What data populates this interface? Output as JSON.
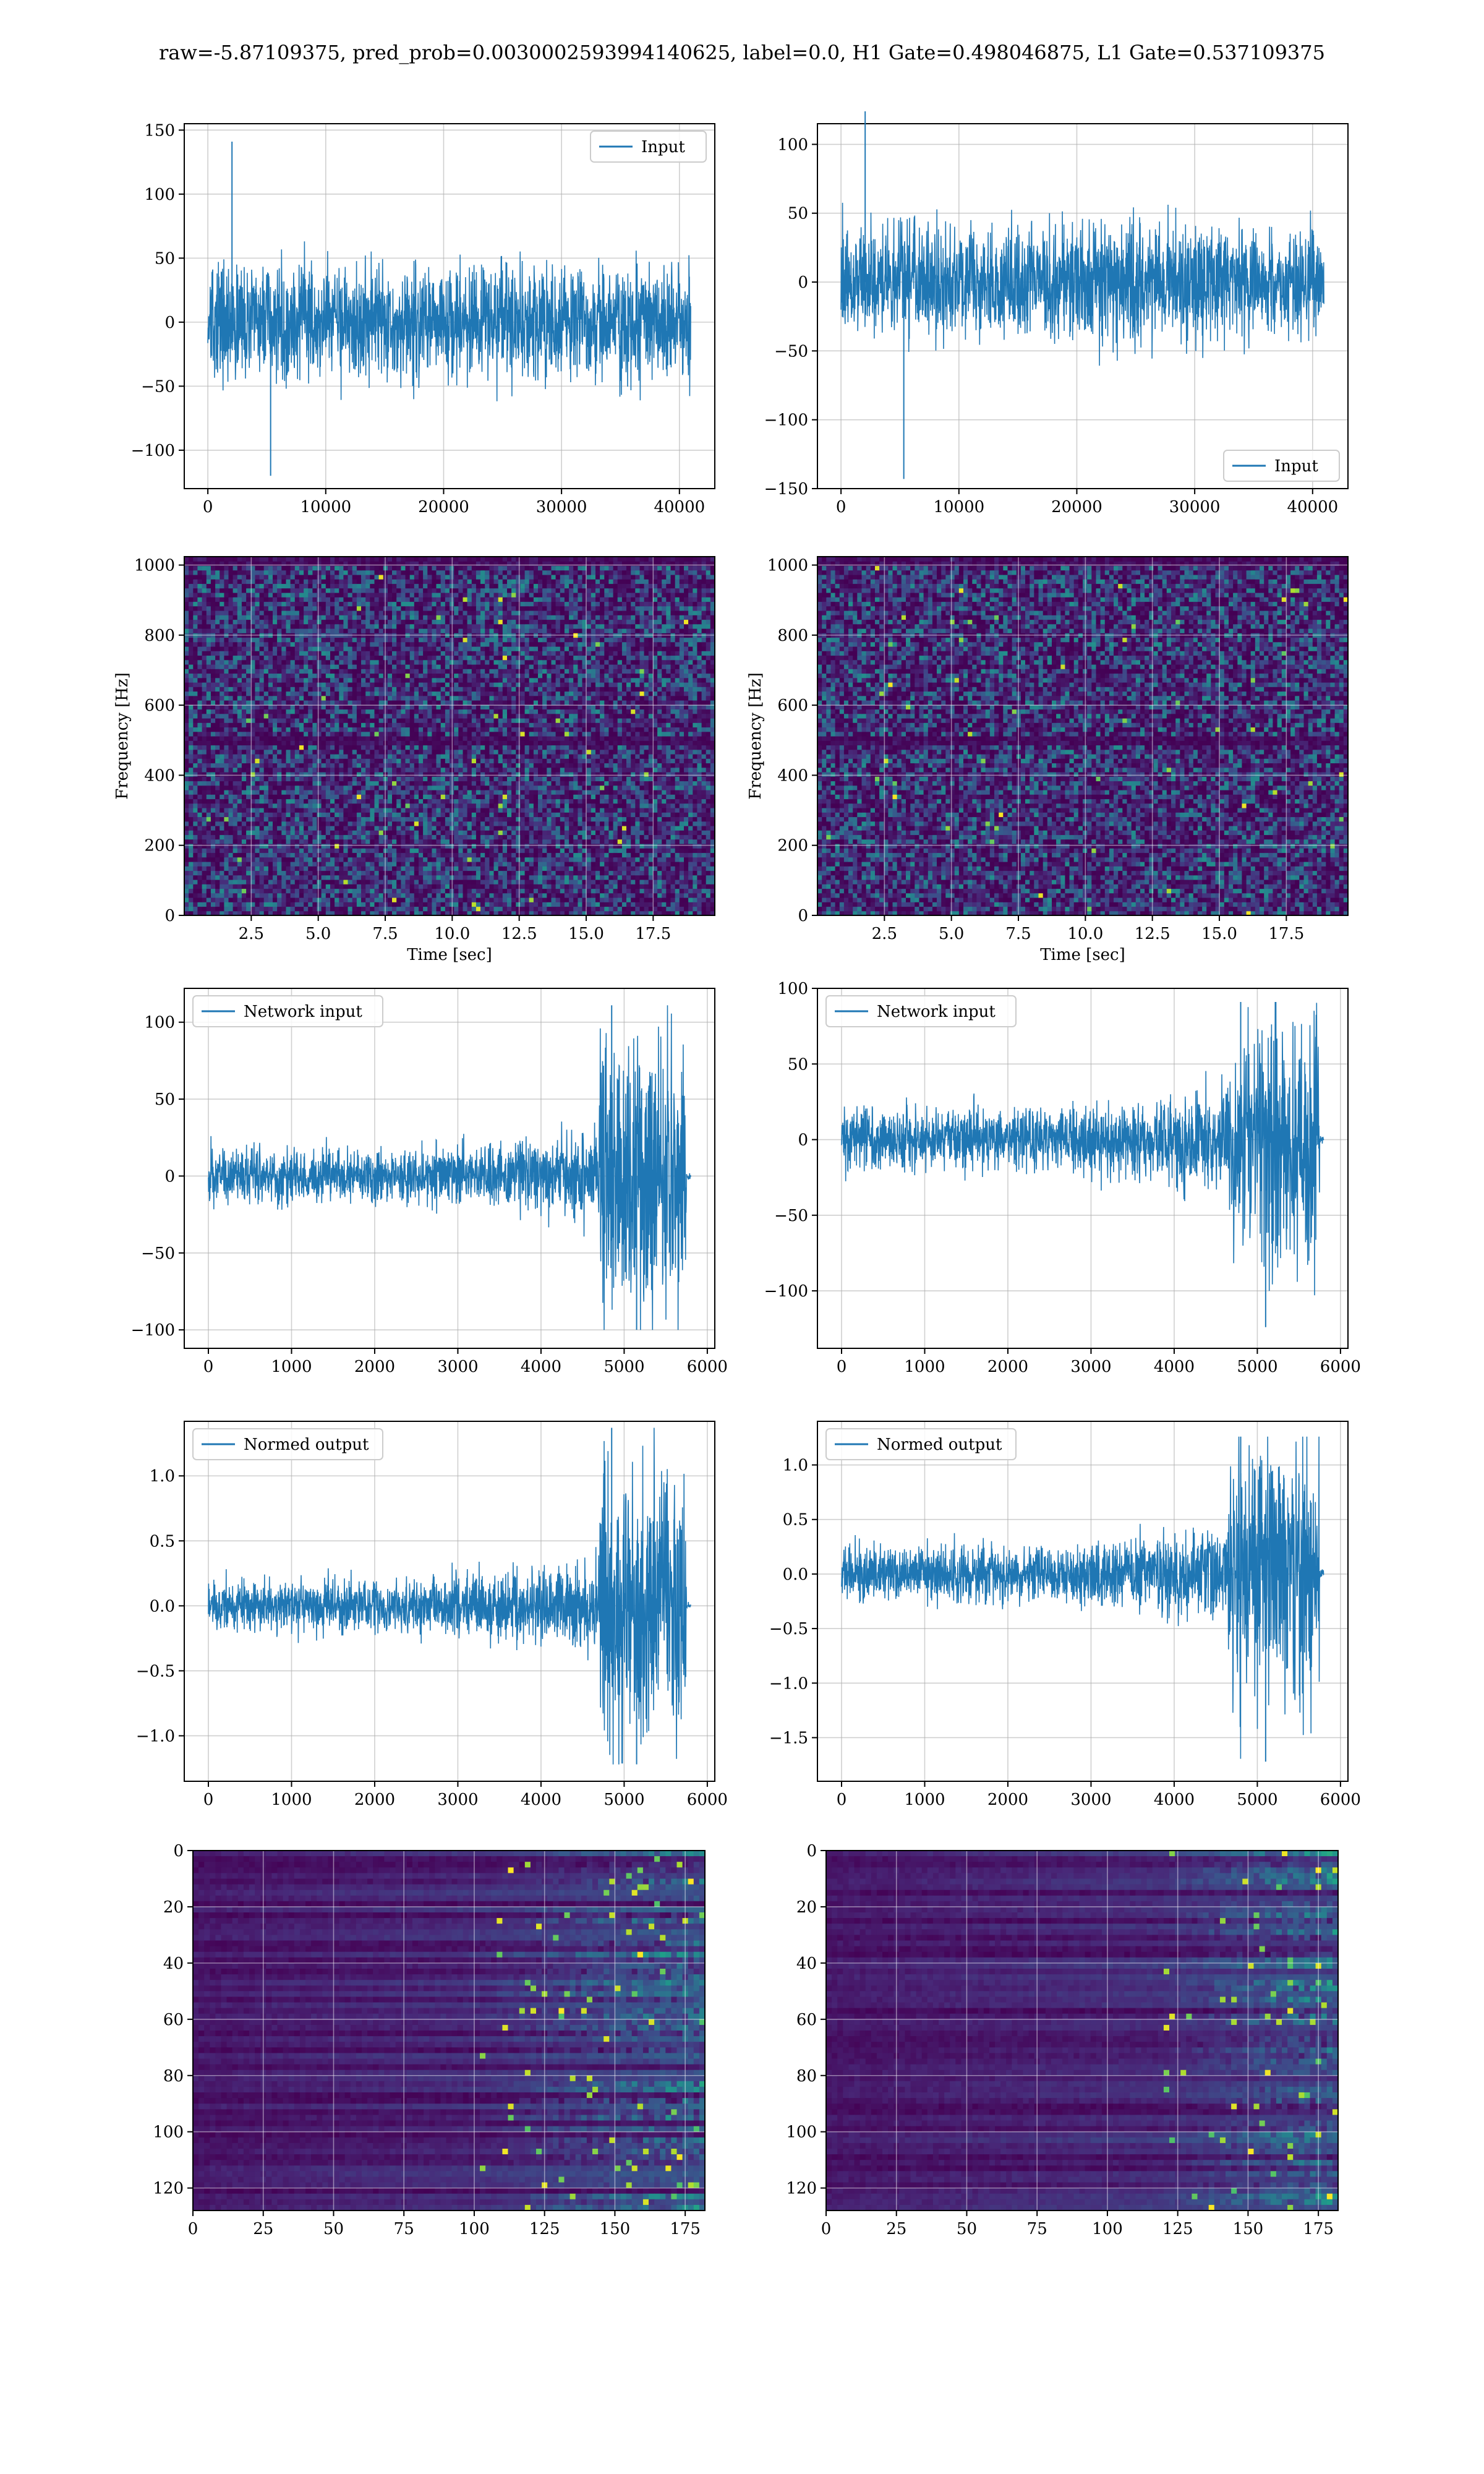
{
  "figure": {
    "suptitle": "raw=-5.87109375, pred_prob=0.0030002593994140625, label=0.0, H1 Gate=0.498046875, L1 Gate=0.537109375"
  },
  "colors": {
    "line": "#1f77b4",
    "grid": "#b0b0b0",
    "viridis_dark": "#440154",
    "viridis_mid": "#21918c",
    "viridis_bright": "#fde725"
  },
  "chart_data": [
    {
      "id": "input-left",
      "type": "line",
      "row": 0,
      "col": 0,
      "legend": {
        "label": "Input",
        "loc": "upper right"
      },
      "xlim": [
        -2000,
        43000
      ],
      "ylim": [
        -130,
        155
      ],
      "xticks": [
        0,
        10000,
        20000,
        30000,
        40000
      ],
      "xticklabels": [
        "0",
        "10000",
        "20000",
        "30000",
        "40000"
      ],
      "yticks": [
        -100,
        -50,
        0,
        50,
        100,
        150
      ],
      "yticklabels": [
        "−100",
        "−50",
        "0",
        "50",
        "100",
        "150"
      ],
      "signal": {
        "x_start": 0,
        "x_end": 40960,
        "core_amp": 50,
        "max": 141,
        "min": -120
      },
      "grid": true
    },
    {
      "id": "input-right",
      "type": "line",
      "row": 0,
      "col": 1,
      "legend": {
        "label": "Input",
        "loc": "lower right"
      },
      "xlim": [
        -2000,
        43000
      ],
      "ylim": [
        -150,
        115
      ],
      "xticks": [
        0,
        10000,
        20000,
        30000,
        40000
      ],
      "xticklabels": [
        "0",
        "10000",
        "20000",
        "30000",
        "40000"
      ],
      "yticks": [
        -150,
        -100,
        -50,
        0,
        50,
        100
      ],
      "yticklabels": [
        "−150",
        "−100",
        "−50",
        "0",
        "50",
        "100"
      ],
      "signal": {
        "x_start": 0,
        "x_end": 40960,
        "core_amp": 45,
        "max": 124,
        "min": -143
      },
      "grid": true
    },
    {
      "id": "spectrogram-left",
      "type": "heatmap",
      "row": 1,
      "col": 0,
      "xlabel": "Time [sec]",
      "ylabel": "Frequency [Hz]",
      "xlim": [
        0,
        19.8
      ],
      "ylim": [
        0,
        1024
      ],
      "xticks": [
        2.5,
        5.0,
        7.5,
        10.0,
        12.5,
        15.0,
        17.5
      ],
      "xticklabels": [
        "2.5",
        "5.0",
        "7.5",
        "10.0",
        "12.5",
        "15.0",
        "17.5"
      ],
      "yticks": [
        0,
        200,
        400,
        600,
        800,
        1000
      ],
      "yticklabels": [
        "0",
        "200",
        "400",
        "600",
        "800",
        "1000"
      ],
      "colormap": "viridis",
      "dark_bands_hz": [
        500,
        1010
      ],
      "grid": true
    },
    {
      "id": "spectrogram-right",
      "type": "heatmap",
      "row": 1,
      "col": 1,
      "xlabel": "Time [sec]",
      "ylabel": "Frequency [Hz]",
      "xlim": [
        0,
        19.8
      ],
      "ylim": [
        0,
        1024
      ],
      "xticks": [
        2.5,
        5.0,
        7.5,
        10.0,
        12.5,
        15.0,
        17.5
      ],
      "xticklabels": [
        "2.5",
        "5.0",
        "7.5",
        "10.0",
        "12.5",
        "15.0",
        "17.5"
      ],
      "yticks": [
        0,
        200,
        400,
        600,
        800,
        1000
      ],
      "yticklabels": [
        "0",
        "200",
        "400",
        "600",
        "800",
        "1000"
      ],
      "colormap": "viridis",
      "dark_bands_hz": [
        500,
        1010
      ],
      "grid": true
    },
    {
      "id": "network-input-left",
      "type": "line",
      "row": 2,
      "col": 0,
      "legend": {
        "label": "Network input",
        "loc": "upper left"
      },
      "xlim": [
        -290,
        6090
      ],
      "ylim": [
        -112,
        122
      ],
      "xticks": [
        0,
        1000,
        2000,
        3000,
        4000,
        5000,
        6000
      ],
      "xticklabels": [
        "0",
        "1000",
        "2000",
        "3000",
        "4000",
        "5000",
        "6000"
      ],
      "yticks": [
        -100,
        -50,
        0,
        50,
        100
      ],
      "yticklabels": [
        "−100",
        "−50",
        "0",
        "50",
        "100"
      ],
      "signal": {
        "x_start": 0,
        "x_end": 5800,
        "chirp_start": 4700,
        "chirp_end": 5750,
        "base_amp": 12,
        "chirp_amp": 60,
        "max": 111,
        "min": -100
      },
      "grid": true
    },
    {
      "id": "network-input-right",
      "type": "line",
      "row": 2,
      "col": 1,
      "legend": {
        "label": "Network input",
        "loc": "upper left"
      },
      "xlim": [
        -290,
        6090
      ],
      "ylim": [
        -138,
        100
      ],
      "xticks": [
        0,
        1000,
        2000,
        3000,
        4000,
        5000,
        6000
      ],
      "xticklabels": [
        "0",
        "1000",
        "2000",
        "3000",
        "4000",
        "5000",
        "6000"
      ],
      "yticks": [
        -100,
        -50,
        0,
        50,
        100
      ],
      "yticklabels": [
        "−100",
        "−50",
        "0",
        "50",
        "100"
      ],
      "signal": {
        "x_start": 0,
        "x_end": 5800,
        "chirp_start": 4650,
        "chirp_end": 5750,
        "base_amp": 14,
        "chirp_amp": 55,
        "max": 91,
        "min": -124
      },
      "grid": true
    },
    {
      "id": "normed-output-left",
      "type": "line",
      "row": 3,
      "col": 0,
      "legend": {
        "label": "Normed output",
        "loc": "upper left"
      },
      "xlim": [
        -290,
        6090
      ],
      "ylim": [
        -1.35,
        1.42
      ],
      "xticks": [
        0,
        1000,
        2000,
        3000,
        4000,
        5000,
        6000
      ],
      "xticklabels": [
        "0",
        "1000",
        "2000",
        "3000",
        "4000",
        "5000",
        "6000"
      ],
      "yticks": [
        -1.0,
        -0.5,
        0.0,
        0.5,
        1.0
      ],
      "yticklabels": [
        "−1.0",
        "−0.5",
        "0.0",
        "0.5",
        "1.0"
      ],
      "signal": {
        "x_start": 0,
        "x_end": 5800,
        "chirp_start": 4700,
        "chirp_end": 5750,
        "base_amp": 0.14,
        "chirp_amp": 0.72,
        "max": 1.37,
        "min": -1.22
      },
      "grid": true
    },
    {
      "id": "normed-output-right",
      "type": "line",
      "row": 3,
      "col": 1,
      "legend": {
        "label": "Normed output",
        "loc": "upper left"
      },
      "xlim": [
        -290,
        6090
      ],
      "ylim": [
        -1.9,
        1.4
      ],
      "xticks": [
        0,
        1000,
        2000,
        3000,
        4000,
        5000,
        6000
      ],
      "xticklabels": [
        "0",
        "1000",
        "2000",
        "3000",
        "4000",
        "5000",
        "6000"
      ],
      "yticks": [
        -1.5,
        -1.0,
        -0.5,
        0.0,
        0.5,
        1.0
      ],
      "yticklabels": [
        "−1.5",
        "−1.0",
        "−0.5",
        "0.0",
        "0.5",
        "1.0"
      ],
      "signal": {
        "x_start": 0,
        "x_end": 5800,
        "chirp_start": 4650,
        "chirp_end": 5750,
        "base_amp": 0.18,
        "chirp_amp": 0.8,
        "max": 1.26,
        "min": -1.72
      },
      "grid": true
    },
    {
      "id": "feature-map-left",
      "type": "heatmap",
      "row": 4,
      "col": 0,
      "xlim": [
        0,
        182
      ],
      "ylim": [
        128,
        0
      ],
      "xticks": [
        0,
        25,
        50,
        75,
        100,
        125,
        150,
        175
      ],
      "xticklabels": [
        "0",
        "25",
        "50",
        "75",
        "100",
        "125",
        "150",
        "175"
      ],
      "yticks": [
        0,
        20,
        40,
        60,
        80,
        100,
        120
      ],
      "yticklabels": [
        "0",
        "20",
        "40",
        "60",
        "80",
        "100",
        "120"
      ],
      "colormap": "viridis",
      "activity_onset": 100,
      "grid": true
    },
    {
      "id": "feature-map-right",
      "type": "heatmap",
      "row": 4,
      "col": 1,
      "xlim": [
        0,
        182
      ],
      "ylim": [
        128,
        0
      ],
      "xticks": [
        0,
        25,
        50,
        75,
        100,
        125,
        150,
        175
      ],
      "xticklabels": [
        "0",
        "25",
        "50",
        "75",
        "100",
        "125",
        "150",
        "175"
      ],
      "yticks": [
        0,
        20,
        40,
        60,
        80,
        100,
        120
      ],
      "yticklabels": [
        "0",
        "20",
        "40",
        "60",
        "80",
        "100",
        "120"
      ],
      "colormap": "viridis",
      "activity_onset": 118,
      "grid": true
    }
  ]
}
